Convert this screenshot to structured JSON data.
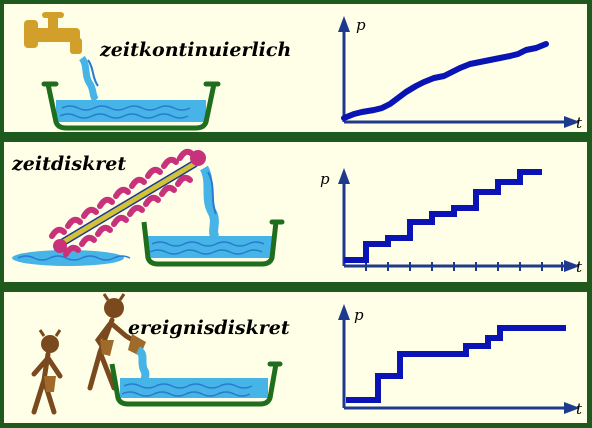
{
  "panels": [
    {
      "label": "zeitkontinuierlich",
      "y_label": "p",
      "x_label": "t"
    },
    {
      "label": "zeitdiskret",
      "y_label": "p",
      "x_label": "t"
    },
    {
      "label": "ereignisdiskret",
      "y_label": "p",
      "x_label": "t"
    }
  ],
  "colors": {
    "frame": "#1e5a1e",
    "panel_bg": "#ffffe8",
    "curve": "#0a14b4",
    "axis": "#1e3a8c",
    "water": "#46b4e6",
    "basin": "#1e6e1e",
    "tap": "#d2a02a",
    "wheel": "#c8327a",
    "figures": "#7a4a1e"
  }
}
